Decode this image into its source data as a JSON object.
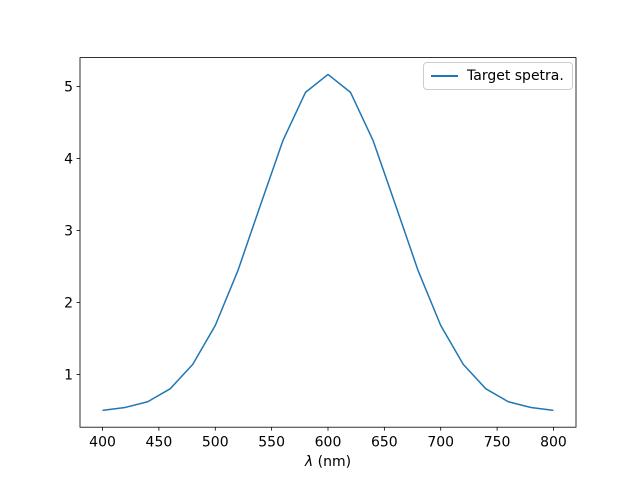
{
  "figure": {
    "background": "#ffffff"
  },
  "chart_data": {
    "type": "line",
    "title": "",
    "xlabel": "λ (nm)",
    "ylabel": "",
    "xlim": [
      380,
      820
    ],
    "ylim": [
      0.2665,
      5.4035
    ],
    "xticks": [
      400,
      450,
      500,
      550,
      600,
      650,
      700,
      750,
      800
    ],
    "yticks": [
      1,
      2,
      3,
      4,
      5
    ],
    "grid": false,
    "axis_color": "#000000",
    "tick_label_color": "#000000",
    "legend": {
      "position": "upper right",
      "border_color": "#cccccc",
      "background": "#ffffff"
    },
    "x": [
      400,
      420,
      440,
      460,
      480,
      500,
      520,
      540,
      560,
      580,
      600,
      620,
      640,
      660,
      680,
      700,
      720,
      740,
      760,
      780,
      800
    ],
    "series": [
      {
        "name": "Target spetra.",
        "color": "#1f77b4",
        "values": [
          0.5,
          0.54,
          0.62,
          0.8,
          1.14,
          1.68,
          2.44,
          3.35,
          4.25,
          4.92,
          5.17,
          4.92,
          4.25,
          3.35,
          2.44,
          1.68,
          1.14,
          0.8,
          0.62,
          0.54,
          0.5
        ]
      }
    ]
  }
}
